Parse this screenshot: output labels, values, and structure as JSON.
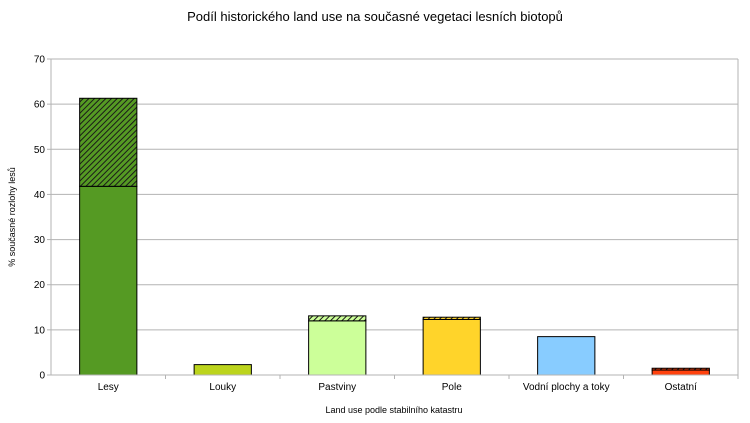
{
  "chart_data": {
    "type": "bar",
    "stacked": true,
    "title": "Podíl historického land use na současné vegetaci lesních biotopů",
    "xlabel": "Land use podle stabilního katastru",
    "ylabel": "% současné rozlohy lesů",
    "ylim": [
      0,
      70
    ],
    "yticks": [
      0,
      10,
      20,
      30,
      40,
      50,
      60,
      70
    ],
    "grid": true,
    "legend": "none",
    "categories": [
      "Lesy",
      "Louky",
      "Pastviny",
      "Pole",
      "Vodní plochy a toky",
      "Ostatní"
    ],
    "colors": [
      "#559a23",
      "#bcd41d",
      "#ccff99",
      "#ffd42a",
      "#88ccff",
      "#ff420e"
    ],
    "series": [
      {
        "pattern": "solid",
        "values": [
          41.8,
          2.3,
          12.0,
          12.3,
          8.5,
          1.1
        ]
      },
      {
        "pattern": "hatched",
        "values": [
          19.5,
          0.0,
          1.1,
          0.5,
          0.0,
          0.4
        ]
      }
    ]
  }
}
